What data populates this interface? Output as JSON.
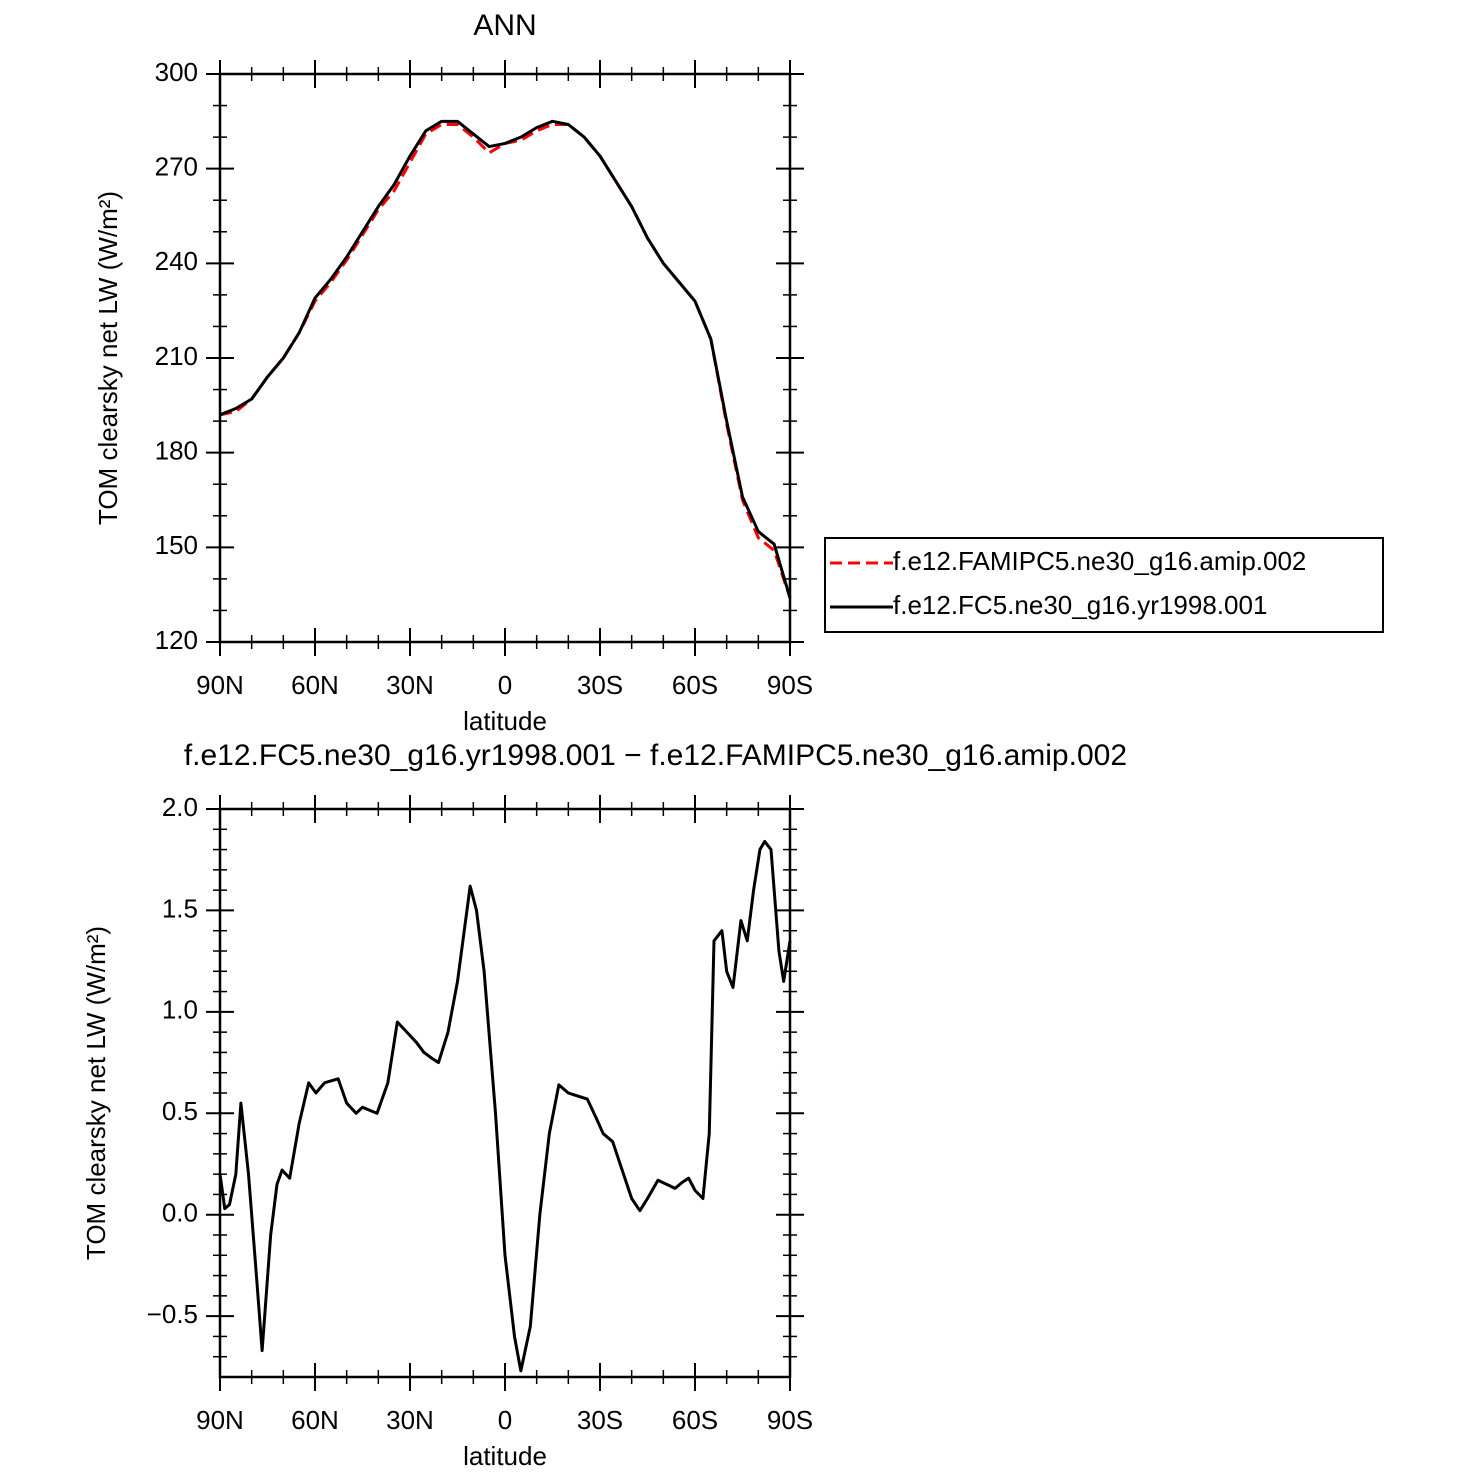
{
  "chart_data": [
    {
      "type": "line",
      "title": "ANN",
      "xlabel": "latitude",
      "ylabel": "TOM clearsky net LW (W/m²)",
      "x": [
        90,
        85,
        80,
        75,
        70,
        65,
        60,
        55,
        50,
        45,
        40,
        35,
        30,
        25,
        20,
        15,
        10,
        5,
        0,
        -5,
        -10,
        -15,
        -20,
        -25,
        -30,
        -35,
        -40,
        -45,
        -50,
        -55,
        -60,
        -65,
        -70,
        -75,
        -80,
        -85,
        -90
      ],
      "series": [
        {
          "name": "f.e12.FAMIPC5.ne30_g16.amip.002",
          "color": "#ff0000",
          "dash": true,
          "values": [
            192,
            193,
            197,
            204,
            210,
            218,
            228,
            234,
            241,
            249,
            257,
            263,
            272,
            281,
            284,
            284,
            280,
            275,
            278,
            279,
            282,
            284,
            284,
            280,
            274,
            266,
            258,
            248,
            240,
            234,
            228,
            216,
            189,
            165,
            153,
            149,
            134
          ]
        },
        {
          "name": "f.e12.FC5.ne30_g16.yr1998.001",
          "color": "#000000",
          "dash": false,
          "values": [
            192,
            194,
            197,
            204,
            210,
            218,
            229,
            235,
            242,
            250,
            258,
            265,
            274,
            282,
            285,
            285,
            281,
            277,
            278,
            280,
            283,
            285,
            284,
            280,
            274,
            266,
            258,
            248,
            240,
            234,
            228,
            216,
            190,
            166,
            155,
            151,
            134
          ]
        }
      ],
      "xlim": [
        90,
        -90
      ],
      "xticks": [
        {
          "value": 90,
          "label": "90N"
        },
        {
          "value": 60,
          "label": "60N"
        },
        {
          "value": 30,
          "label": "30N"
        },
        0,
        {
          "value": -30,
          "label": "30S"
        },
        {
          "value": -60,
          "label": "60S"
        },
        {
          "value": -90,
          "label": "90S"
        }
      ],
      "xminorticks": [
        80,
        70,
        50,
        40,
        20,
        10,
        -10,
        -20,
        -40,
        -50,
        -70,
        -80
      ],
      "ylim": [
        120,
        300
      ],
      "yticks": [
        120,
        150,
        180,
        210,
        240,
        270,
        300
      ],
      "yminorticks": [
        130,
        140,
        160,
        170,
        190,
        200,
        220,
        230,
        250,
        260,
        280,
        290
      ],
      "legend": "right"
    },
    {
      "type": "line",
      "title": "f.e12.FC5.ne30_g16.yr1998.001 − f.e12.FAMIPC5.ne30_g16.amip.002",
      "xlabel": "latitude",
      "ylabel": "TOM clearsky net LW (W/m²)",
      "x": [
        90,
        88.5,
        87,
        85,
        83.4,
        81,
        78.5,
        76.7,
        74,
        72,
        70.4,
        68,
        65,
        62,
        59.7,
        57,
        52.7,
        50,
        47,
        45,
        42,
        40.4,
        37,
        34,
        31,
        28,
        25.6,
        23,
        21,
        18,
        15,
        11,
        9,
        6.6,
        3,
        0,
        -3,
        -5,
        -8,
        -11,
        -14,
        -17,
        -20,
        -22,
        -26,
        -29,
        -31,
        -34,
        -37,
        -40,
        -42.6,
        -45,
        -48.3,
        -51,
        -53.7,
        -56,
        -58,
        -60,
        -62.5,
        -64.5,
        -66,
        -68.5,
        -70,
        -72,
        -74.5,
        -76.5,
        -78.5,
        -80.5,
        -82,
        -84,
        -86.5,
        -88,
        -90
      ],
      "series": [
        {
          "color": "#000000",
          "dash": false,
          "values": [
            0.2,
            0.03,
            0.05,
            0.2,
            0.55,
            0.2,
            -0.3,
            -0.67,
            -0.1,
            0.15,
            0.22,
            0.18,
            0.45,
            0.65,
            0.6,
            0.65,
            0.67,
            0.55,
            0.5,
            0.53,
            0.51,
            0.5,
            0.65,
            0.95,
            0.9,
            0.85,
            0.8,
            0.77,
            0.75,
            0.9,
            1.15,
            1.62,
            1.5,
            1.2,
            0.5,
            -0.2,
            -0.6,
            -0.77,
            -0.55,
            0.0,
            0.4,
            0.64,
            0.6,
            0.59,
            0.57,
            0.47,
            0.4,
            0.36,
            0.22,
            0.08,
            0.02,
            0.08,
            0.17,
            0.15,
            0.13,
            0.16,
            0.18,
            0.12,
            0.08,
            0.4,
            1.35,
            1.4,
            1.2,
            1.12,
            1.45,
            1.35,
            1.6,
            1.8,
            1.84,
            1.8,
            1.3,
            1.15,
            1.35
          ]
        }
      ],
      "xlim": [
        90,
        -90
      ],
      "xticks": [
        {
          "value": 90,
          "label": "90N"
        },
        {
          "value": 60,
          "label": "60N"
        },
        {
          "value": 30,
          "label": "30N"
        },
        0,
        {
          "value": -30,
          "label": "30S"
        },
        {
          "value": -60,
          "label": "60S"
        },
        {
          "value": -90,
          "label": "90S"
        }
      ],
      "xminorticks": [
        80,
        70,
        50,
        40,
        20,
        10,
        -10,
        -20,
        -40,
        -50,
        -70,
        -80
      ],
      "ylim": [
        -0.8,
        2.0
      ],
      "yticks": [
        {
          "value": -0.5,
          "label": "−0.5"
        },
        {
          "value": 0,
          "label": "0.0"
        },
        0.5,
        {
          "value": 1,
          "label": "1.0"
        },
        1.5,
        {
          "value": 2,
          "label": "2.0"
        }
      ],
      "yminorticks": [
        -0.7,
        -0.6,
        -0.4,
        -0.3,
        -0.2,
        -0.1,
        0.1,
        0.2,
        0.3,
        0.4,
        0.6,
        0.7,
        0.8,
        0.9,
        1.1,
        1.2,
        1.3,
        1.4,
        1.6,
        1.7,
        1.8,
        1.9
      ]
    }
  ]
}
